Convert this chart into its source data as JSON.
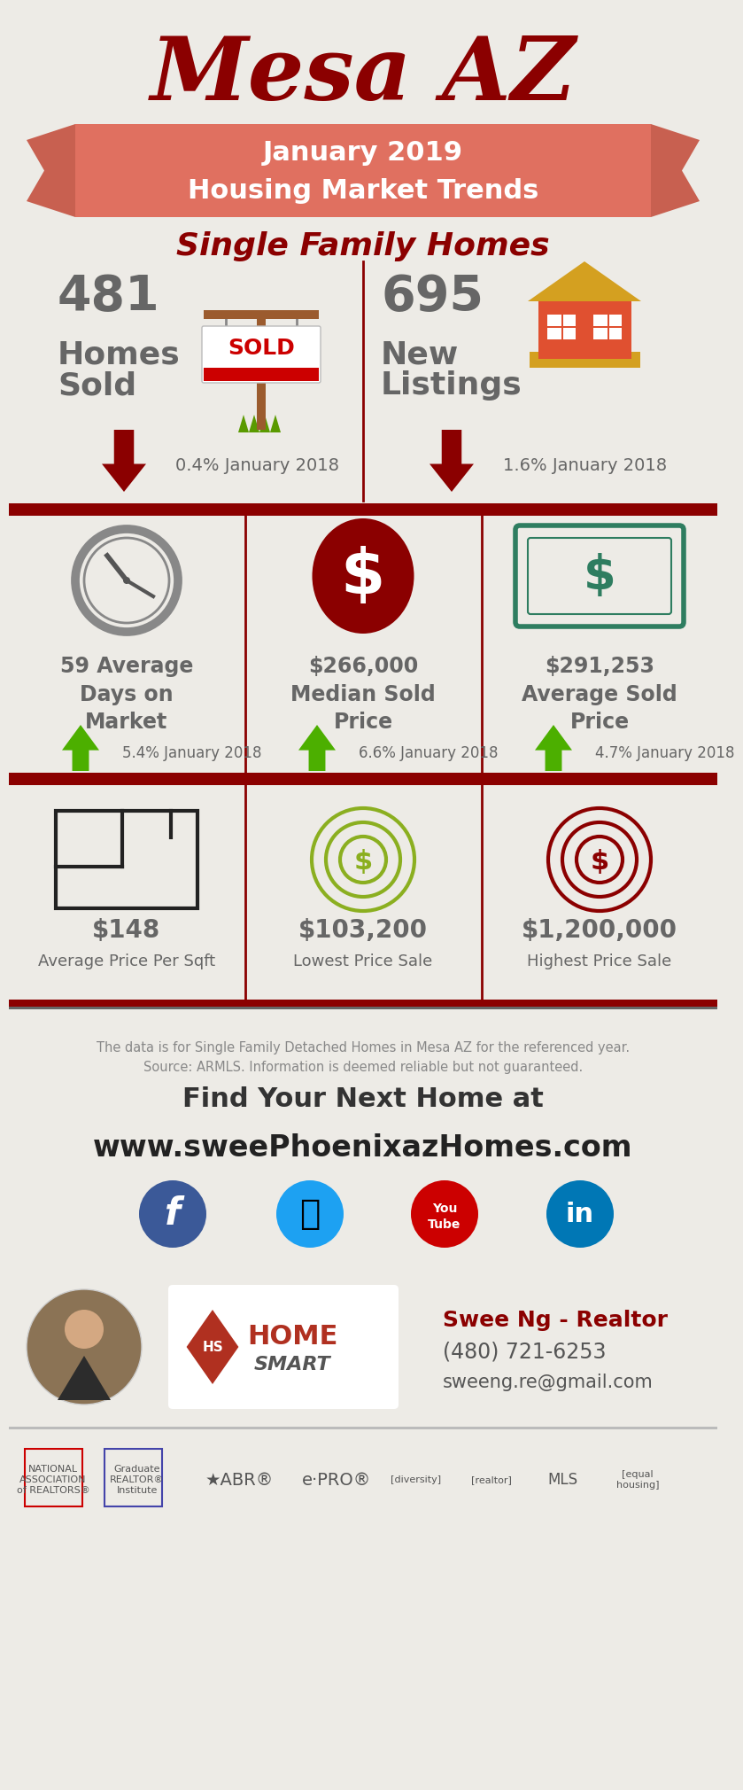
{
  "bg_color": "#EDEBE6",
  "title_main": "Mesa AZ",
  "title_main_color": "#8B0000",
  "banner_text1": "January 2019",
  "banner_text2": "Housing Market Trends",
  "banner_color": "#E07060",
  "banner_ear_color": "#C86050",
  "subtitle": "Single Family Homes",
  "subtitle_color": "#8B0000",
  "text_color": "#666666",
  "dark_red": "#8B0000",
  "green": "#4CAF00",
  "divider_color": "#8B0000",
  "section1_left_val": "481",
  "section1_left_lbl": "Homes\nSold",
  "section1_left_chg": "0.4% January 2018",
  "section1_right_val": "695",
  "section1_right_lbl": "New\nListings",
  "section1_right_chg": "1.6% January 2018",
  "sec2_c1_val": "59 Average\nDays on\nMarket",
  "sec2_c1_chg": "5.4% January 2018",
  "sec2_c2_val": "$266,000\nMedian Sold\nPrice",
  "sec2_c2_chg": "6.6% January 2018",
  "sec2_c3_val": "$291,253\nAverage Sold\nPrice",
  "sec2_c3_chg": "4.7% January 2018",
  "sec3_c1_val": "$148",
  "sec3_c1_lbl": "Average Price Per Sqft",
  "sec3_c2_val": "$103,200",
  "sec3_c2_lbl": "Lowest Price Sale",
  "sec3_c3_val": "$1,200,000",
  "sec3_c3_lbl": "Highest Price Sale",
  "footer_note": "The data is for Single Family Detached Homes in Mesa AZ for the referenced year.\nSource: ARMLS. Information is deemed reliable but not guaranteed.",
  "footer_cta1": "Find Your Next Home at",
  "footer_cta2": "www.sweePhoenixazHomes.com",
  "footer_name": "Swee Ng - Realtor",
  "footer_phone": "(480) 721-6253",
  "footer_email": "sweeng.re@gmail.com"
}
